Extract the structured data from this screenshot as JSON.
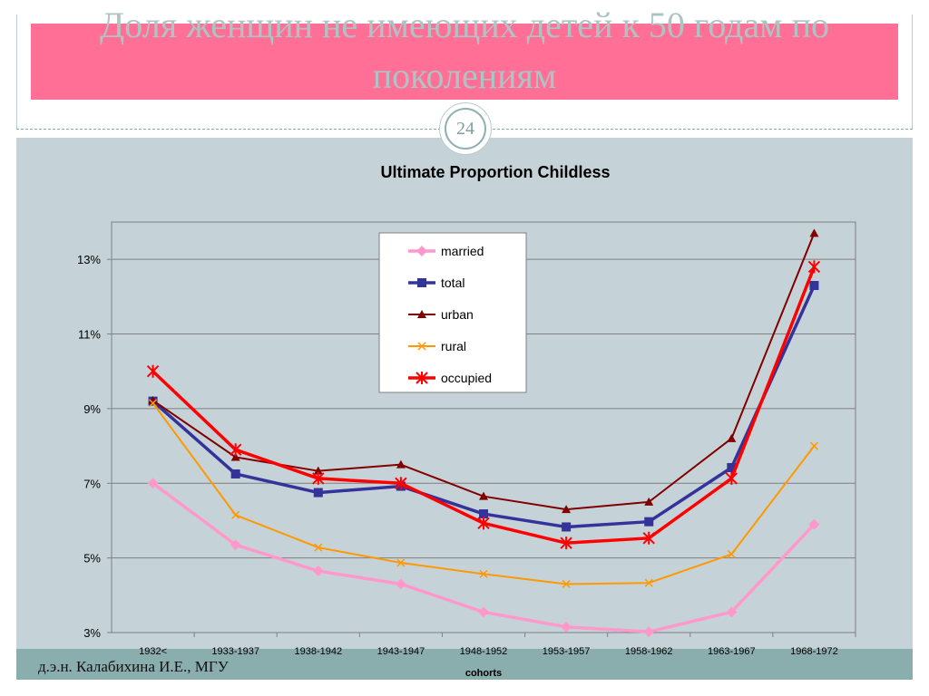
{
  "slide": {
    "title": "Доля женщин не имеющих детей к 50 годам по поколениям",
    "page_number": "24",
    "author": "д.э.н. Калабихина И.Е., МГУ"
  },
  "colors": {
    "title_band": "#ff6f96",
    "chart_background": "#c5d2d8",
    "footer_band": "#8aadad"
  },
  "chart_data": {
    "type": "line",
    "title": "Ultimate Proportion Childless",
    "xlabel": "cohorts",
    "ylabel": "",
    "categories": [
      "1932<",
      "1933-1937",
      "1938-1942",
      "1943-1947",
      "1948-1952",
      "1953-1957",
      "1958-1962",
      "1963-1967",
      "1968-1972"
    ],
    "ylim": [
      3,
      14
    ],
    "yticks": [
      3,
      5,
      7,
      9,
      11,
      13
    ],
    "ytick_labels": [
      "3%",
      "5%",
      "7%",
      "9%",
      "11%",
      "13%"
    ],
    "grid": true,
    "legend_position": "top-center",
    "series": [
      {
        "name": "married",
        "color": "#ff99cc",
        "marker": "diamond",
        "values": [
          7.0,
          5.35,
          4.65,
          4.3,
          3.55,
          3.15,
          3.02,
          3.55,
          5.9
        ]
      },
      {
        "name": "total",
        "color": "#333399",
        "marker": "square",
        "values": [
          9.2,
          7.25,
          6.75,
          6.92,
          6.18,
          5.83,
          5.97,
          7.42,
          12.3
        ]
      },
      {
        "name": "urban",
        "color": "#800000",
        "marker": "triangle",
        "values": [
          9.22,
          7.7,
          7.33,
          7.5,
          6.65,
          6.3,
          6.5,
          8.2,
          13.7
        ]
      },
      {
        "name": "rural",
        "color": "#ff9900",
        "marker": "x",
        "values": [
          9.15,
          6.15,
          5.28,
          4.87,
          4.57,
          4.3,
          4.33,
          5.1,
          8.0
        ]
      },
      {
        "name": "occupied",
        "color": "#ff0000",
        "marker": "star",
        "values": [
          10.0,
          7.9,
          7.13,
          7.0,
          5.93,
          5.4,
          5.53,
          7.13,
          12.8
        ]
      }
    ]
  }
}
